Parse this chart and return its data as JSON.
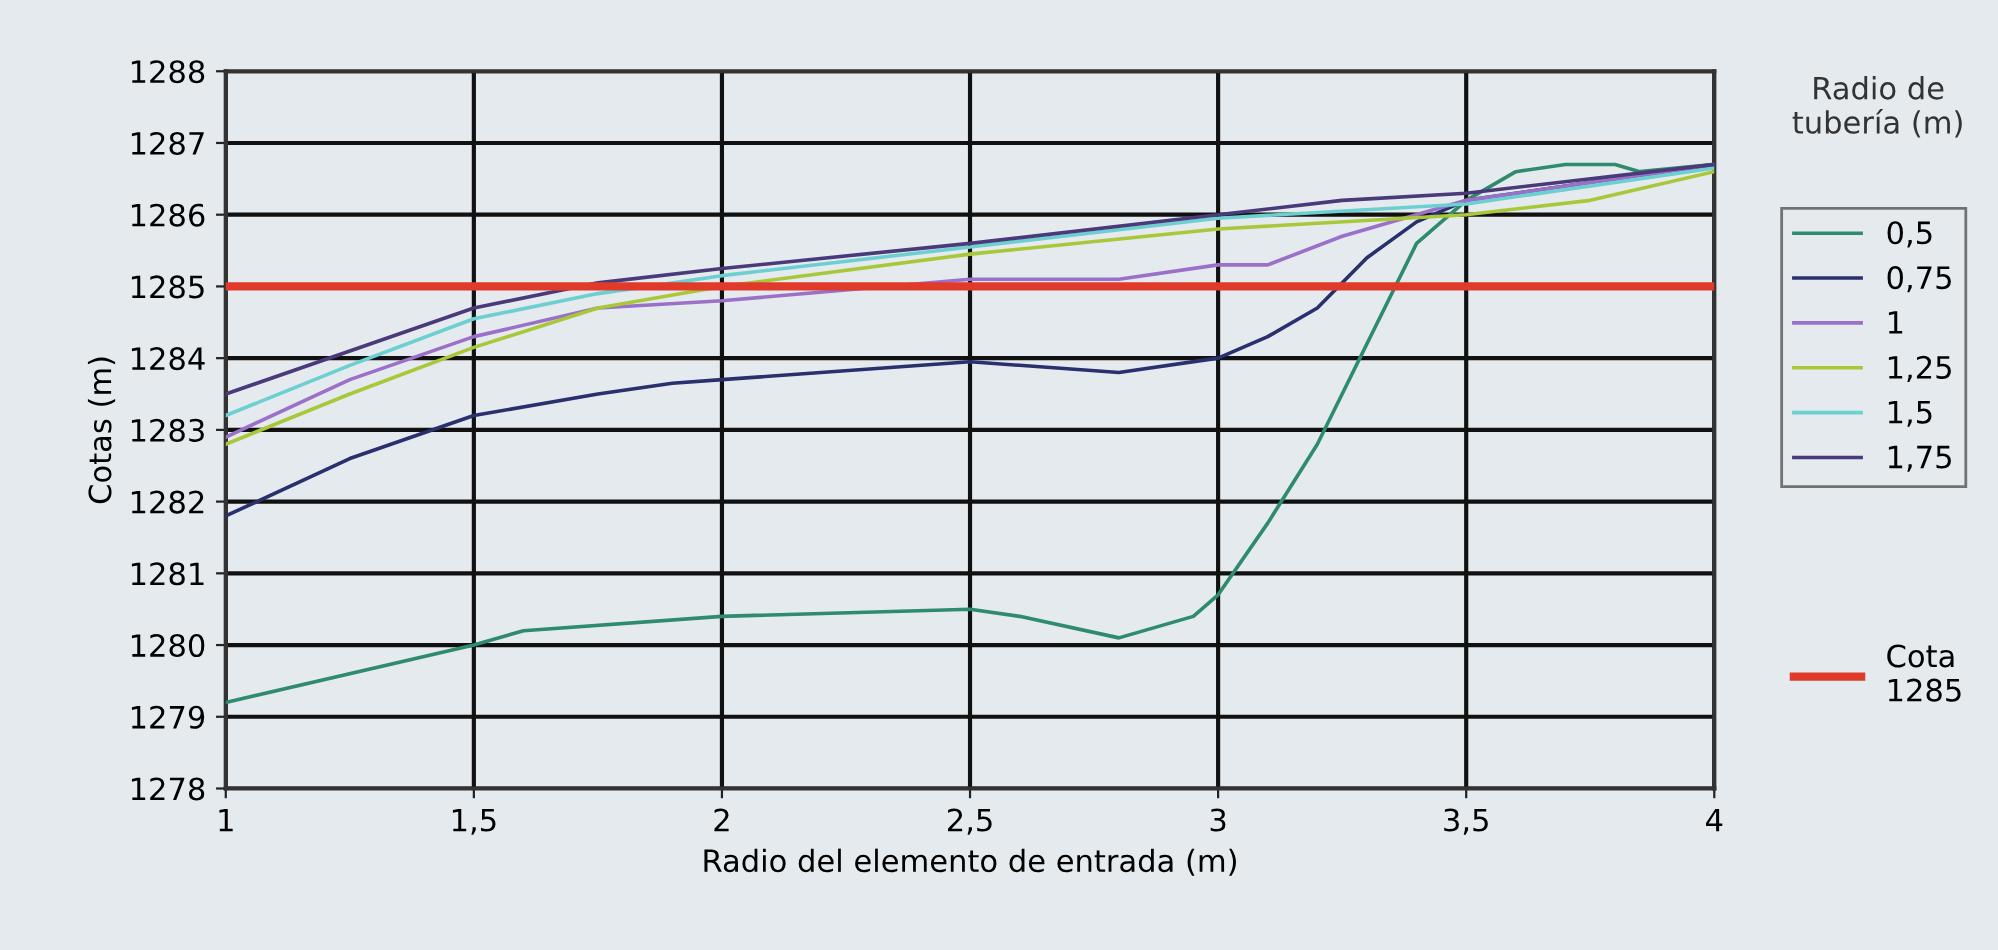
{
  "chart_data": {
    "type": "line",
    "xlabel": "Radio del elemento de entrada (m)",
    "ylabel": "Cotas (m)",
    "legend_title": "Radio de tubería (m)",
    "xlim": [
      1,
      4
    ],
    "xticks": [
      {
        "value": 1,
        "label": "1"
      },
      {
        "value": 1.5,
        "label": "1,5"
      },
      {
        "value": 2,
        "label": "2"
      },
      {
        "value": 2.5,
        "label": "2,5"
      },
      {
        "value": 3,
        "label": "3"
      },
      {
        "value": 3.5,
        "label": "3,5"
      },
      {
        "value": 4,
        "label": "4"
      }
    ],
    "ylim": [
      1278,
      1288
    ],
    "yticks": [
      1278,
      1279,
      1280,
      1281,
      1282,
      1283,
      1284,
      1285,
      1286,
      1287,
      1288
    ],
    "grid": true,
    "legend": "right",
    "marker": "none",
    "line_style": "solid",
    "series": [
      {
        "name": "0,5",
        "color": "#2e8b6e",
        "x": [
          1,
          1.5,
          1.6,
          2,
          2.5,
          2.6,
          2.8,
          2.95,
          3,
          3.1,
          3.2,
          3.3,
          3.4,
          3.5,
          3.6,
          3.7,
          3.8,
          3.85,
          4
        ],
        "values": [
          1279.2,
          1280.0,
          1280.2,
          1280.4,
          1280.5,
          1280.4,
          1280.1,
          1280.4,
          1280.7,
          1281.7,
          1282.8,
          1284.2,
          1285.6,
          1286.2,
          1286.6,
          1286.7,
          1286.7,
          1286.6,
          1286.7
        ]
      },
      {
        "name": "0,75",
        "color": "#2a2f6e",
        "x": [
          1,
          1.25,
          1.5,
          1.75,
          1.9,
          2,
          2.5,
          2.8,
          3,
          3.1,
          3.2,
          3.3,
          3.4,
          3.5,
          4
        ],
        "values": [
          1281.8,
          1282.6,
          1283.2,
          1283.5,
          1283.65,
          1283.7,
          1283.95,
          1283.8,
          1284.0,
          1284.3,
          1284.7,
          1285.4,
          1285.9,
          1286.2,
          1286.7
        ]
      },
      {
        "name": "1",
        "color": "#9a70c8",
        "x": [
          1,
          1.25,
          1.5,
          1.75,
          2,
          2.5,
          2.8,
          3,
          3.1,
          3.25,
          3.5,
          4
        ],
        "values": [
          1282.9,
          1283.7,
          1284.3,
          1284.7,
          1284.8,
          1285.1,
          1285.1,
          1285.3,
          1285.3,
          1285.7,
          1286.2,
          1286.7
        ]
      },
      {
        "name": "1,25",
        "color": "#a8c83a",
        "x": [
          1,
          1.25,
          1.5,
          1.75,
          2,
          2.5,
          3,
          3.5,
          3.75,
          4
        ],
        "values": [
          1282.8,
          1283.5,
          1284.15,
          1284.7,
          1285.0,
          1285.45,
          1285.8,
          1286.0,
          1286.2,
          1286.6
        ]
      },
      {
        "name": "1,5",
        "color": "#6cd0d0",
        "x": [
          1,
          1.25,
          1.5,
          1.75,
          2,
          2.5,
          3,
          3.5,
          4
        ],
        "values": [
          1283.2,
          1283.9,
          1284.55,
          1284.9,
          1285.15,
          1285.55,
          1285.95,
          1286.15,
          1286.65
        ]
      },
      {
        "name": "1,75",
        "color": "#4a3a7a",
        "x": [
          1,
          1.25,
          1.5,
          1.75,
          2,
          2.5,
          3,
          3.25,
          3.5,
          4
        ],
        "values": [
          1283.5,
          1284.1,
          1284.7,
          1285.05,
          1285.25,
          1285.6,
          1286.0,
          1286.2,
          1286.3,
          1286.7
        ]
      }
    ],
    "ref_lines": [
      {
        "axis": "y",
        "value": 1285,
        "label": "Cota\n1285",
        "color": "#e03a2a",
        "line_style": "solid"
      }
    ]
  }
}
